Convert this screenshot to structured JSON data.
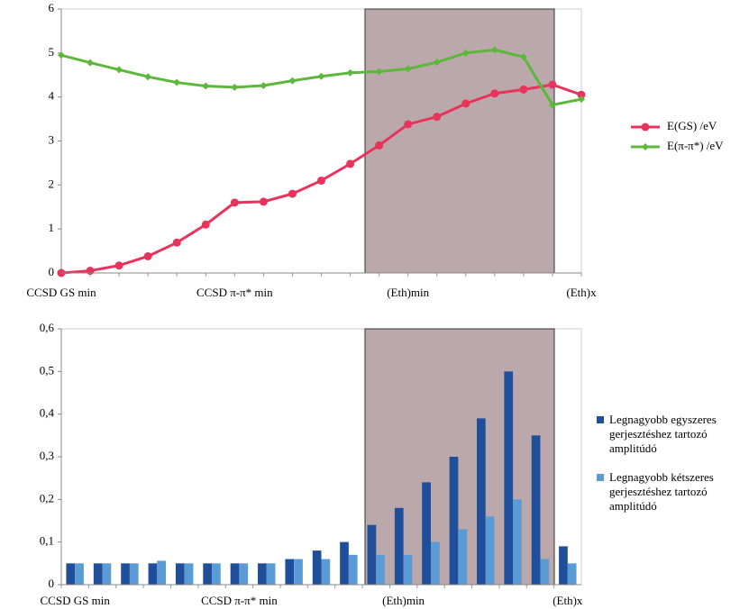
{
  "chart_data": [
    {
      "type": "line",
      "categories": [
        "CCSD GS min",
        null,
        null,
        null,
        null,
        null,
        "CCSD  π-π* min",
        null,
        null,
        null,
        null,
        null,
        "(Eth)min",
        null,
        null,
        null,
        null,
        null,
        "(Eth)x"
      ],
      "ylim": [
        0,
        6
      ],
      "yticks": [
        0,
        1,
        2,
        3,
        4,
        5,
        6
      ],
      "series": [
        {
          "name": "E(GS) /eV",
          "color": "#e8335c",
          "marker": "circle",
          "values": [
            0,
            0.05,
            0.17,
            0.38,
            0.69,
            1.1,
            1.6,
            1.62,
            1.8,
            2.1,
            2.48,
            2.9,
            3.38,
            3.55,
            3.85,
            4.08,
            4.17,
            4.28,
            4.05
          ]
        },
        {
          "name": "E(π-π*) /eV",
          "color": "#5cb83a",
          "marker": "diamond",
          "values": [
            4.95,
            4.78,
            4.62,
            4.46,
            4.33,
            4.25,
            4.22,
            4.26,
            4.37,
            4.47,
            4.55,
            4.58,
            4.64,
            4.79,
            5.0,
            5.07,
            4.91,
            3.82,
            3.95
          ]
        }
      ]
    },
    {
      "type": "bar",
      "categories": [
        "CCSD GS min",
        null,
        null,
        null,
        null,
        null,
        "CCSD  π-π* min",
        null,
        null,
        null,
        null,
        null,
        "(Eth)min",
        null,
        null,
        null,
        null,
        null,
        "(Eth)x"
      ],
      "ylim": [
        0,
        0.6
      ],
      "yticks": [
        0,
        {
          "value": 0.1,
          "label": "0,1"
        },
        {
          "value": 0.2,
          "label": "0,2"
        },
        {
          "value": 0.3,
          "label": "0,3"
        },
        {
          "value": 0.4,
          "label": "0,4"
        },
        {
          "value": 0.5,
          "label": "0,5"
        },
        {
          "value": 0.6,
          "label": "0,6"
        }
      ],
      "series": [
        {
          "name": "Legnagyobb egyszeres gerjesztéshez tartozó amplitúdó",
          "color": "#1f4e9a",
          "values": [
            0.05,
            0.05,
            0.05,
            0.05,
            0.05,
            0.05,
            0.05,
            0.05,
            0.06,
            0.08,
            0.1,
            0.14,
            0.18,
            0.24,
            0.3,
            0.39,
            0.5,
            0.35,
            0.09
          ]
        },
        {
          "name": "Legnagyobb kétszeres gerjesztéshez tartozó amplitúdó",
          "color": "#5b9bd5",
          "values": [
            0.05,
            0.05,
            0.05,
            0.056,
            0.05,
            0.05,
            0.05,
            0.05,
            0.06,
            0.06,
            0.07,
            0.07,
            0.07,
            0.1,
            0.13,
            0.16,
            0.2,
            0.06,
            0.05
          ]
        }
      ]
    }
  ]
}
